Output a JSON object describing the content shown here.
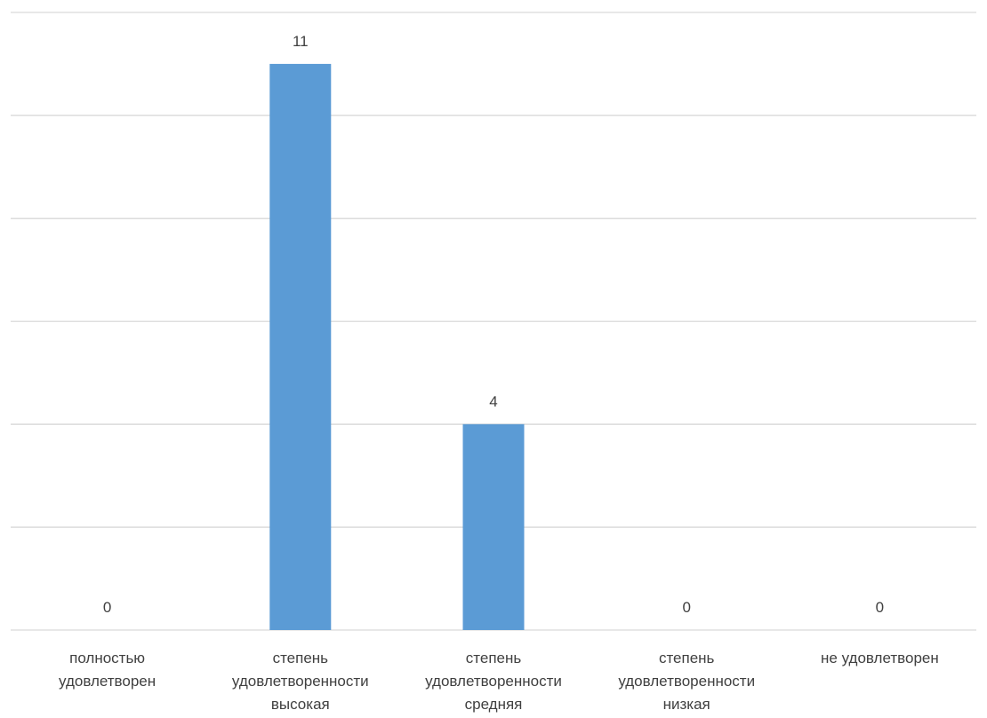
{
  "chart_data": {
    "type": "bar",
    "title": "",
    "xlabel": "",
    "ylabel": "",
    "ylim": [
      0,
      12
    ],
    "grid": true,
    "legend": false,
    "categories": [
      [
        "полностью",
        "удовлетворен"
      ],
      [
        "степень",
        "удовлетворенности",
        "высокая"
      ],
      [
        "степень",
        "удовлетворенности",
        "средняя"
      ],
      [
        "степень",
        "удовлетворенности",
        "низкая"
      ],
      [
        "не удовлетворен"
      ]
    ],
    "values": [
      0,
      11,
      4,
      0,
      0
    ],
    "data_labels": [
      "0",
      "11",
      "4",
      "0",
      "0"
    ],
    "colors": {
      "bar": "#5b9bd5",
      "grid": "#d9d9d9",
      "text": "#404040"
    }
  }
}
